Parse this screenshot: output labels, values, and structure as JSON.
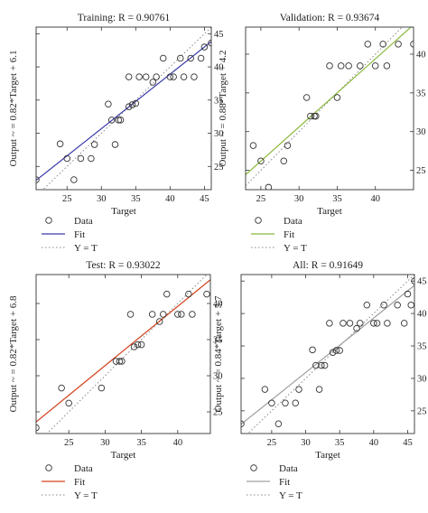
{
  "chart_data": [
    {
      "type": "scatter",
      "title": "Training: R = 0.90761",
      "xlabel": "Target",
      "ylabel": "Output ~ = 0.82*Target + 6.1",
      "xlim": [
        20.5,
        46
      ],
      "ylim": [
        21.5,
        46
      ],
      "xticks": [
        25,
        30,
        35,
        40,
        45
      ],
      "yticks": [
        25,
        30,
        35,
        40,
        45
      ],
      "fit_color": "#3a3aa8",
      "fit": {
        "slope": 0.82,
        "intercept": 6.1,
        "x_range": [
          20.5,
          46
        ]
      },
      "points": [
        [
          20.5,
          23.0
        ],
        [
          24.0,
          28.4
        ],
        [
          25.0,
          26.2
        ],
        [
          26.0,
          23.0
        ],
        [
          27.0,
          26.2
        ],
        [
          28.5,
          26.2
        ],
        [
          29.0,
          28.3
        ],
        [
          31.0,
          34.4
        ],
        [
          31.5,
          32.0
        ],
        [
          32.0,
          28.3
        ],
        [
          32.5,
          32.0
        ],
        [
          32.8,
          32.0
        ],
        [
          34.0,
          34.0
        ],
        [
          34.0,
          38.5
        ],
        [
          34.5,
          34.3
        ],
        [
          35.0,
          34.5
        ],
        [
          35.5,
          38.5
        ],
        [
          36.5,
          38.5
        ],
        [
          37.5,
          37.7
        ],
        [
          38.0,
          38.5
        ],
        [
          39.0,
          41.3
        ],
        [
          40.0,
          38.5
        ],
        [
          40.5,
          38.5
        ],
        [
          41.5,
          41.3
        ],
        [
          42.0,
          38.5
        ],
        [
          43.0,
          41.3
        ],
        [
          43.5,
          38.5
        ],
        [
          44.5,
          41.3
        ],
        [
          45.0,
          43.0
        ],
        [
          46.0,
          43.6
        ]
      ],
      "legend": [
        "Data",
        "Fit",
        "Y = T"
      ]
    },
    {
      "type": "scatter",
      "title": "Validation: R = 0.93674",
      "xlabel": "Target",
      "ylabel": "Output ~ = 0.88*Target + 4.2",
      "xlim": [
        23,
        45
      ],
      "ylim": [
        22.5,
        43.5
      ],
      "xticks": [
        25,
        30,
        35,
        40
      ],
      "yticks": [
        25,
        30,
        35,
        40
      ],
      "fit_color": "#8ab83a",
      "fit": {
        "slope": 0.88,
        "intercept": 4.2,
        "x_range": [
          23,
          45
        ]
      },
      "points": [
        [
          24.0,
          28.2
        ],
        [
          25.0,
          26.2
        ],
        [
          26.0,
          22.8
        ],
        [
          28.0,
          26.2
        ],
        [
          28.5,
          28.2
        ],
        [
          31.0,
          34.4
        ],
        [
          31.5,
          32.0
        ],
        [
          32.0,
          32.0
        ],
        [
          32.2,
          32.0
        ],
        [
          34.0,
          38.5
        ],
        [
          35.0,
          34.4
        ],
        [
          35.5,
          38.5
        ],
        [
          36.5,
          38.5
        ],
        [
          38.0,
          38.5
        ],
        [
          39.0,
          41.3
        ],
        [
          40.0,
          38.5
        ],
        [
          41.0,
          41.3
        ],
        [
          41.5,
          38.5
        ],
        [
          43.0,
          41.3
        ],
        [
          45.0,
          41.3
        ]
      ],
      "legend": [
        "Data",
        "Fit",
        "Y = T"
      ]
    },
    {
      "type": "scatter",
      "title": "Test: R = 0.93022",
      "xlabel": "Target",
      "ylabel": "Output ~ = 0.82*Target + 6.8",
      "xlim": [
        20.5,
        44.5
      ],
      "ylim": [
        22.0,
        44.0
      ],
      "xticks": [
        25,
        30,
        35,
        40
      ],
      "yticks": [
        25,
        30,
        35,
        40
      ],
      "fit_color": "#d2401a",
      "fit": {
        "slope": 0.82,
        "intercept": 6.8,
        "x_range": [
          20.5,
          44.5
        ]
      },
      "points": [
        [
          20.5,
          22.8
        ],
        [
          24.0,
          28.3
        ],
        [
          25.0,
          26.2
        ],
        [
          29.5,
          28.3
        ],
        [
          31.5,
          32.0
        ],
        [
          32.0,
          32.0
        ],
        [
          32.3,
          32.0
        ],
        [
          33.5,
          38.5
        ],
        [
          34.0,
          34.0
        ],
        [
          34.5,
          34.3
        ],
        [
          35.0,
          34.3
        ],
        [
          36.5,
          38.5
        ],
        [
          37.5,
          37.5
        ],
        [
          38.0,
          38.5
        ],
        [
          38.5,
          41.3
        ],
        [
          40.0,
          38.5
        ],
        [
          40.5,
          38.5
        ],
        [
          41.5,
          41.3
        ],
        [
          42.0,
          38.5
        ],
        [
          44.0,
          41.3
        ]
      ],
      "legend": [
        "Data",
        "Fit",
        "Y = T"
      ]
    },
    {
      "type": "scatter",
      "title": "All: R = 0.91649",
      "xlabel": "Target",
      "ylabel": "Output ~ = 0.84*Target + 5.7",
      "xlim": [
        20.5,
        46
      ],
      "ylim": [
        21.5,
        46
      ],
      "xticks": [
        25,
        30,
        35,
        40,
        45
      ],
      "yticks": [
        25,
        30,
        35,
        40,
        45
      ],
      "fit_color": "#a0a0a0",
      "fit": {
        "slope": 0.84,
        "intercept": 5.7,
        "x_range": [
          20.5,
          46
        ]
      },
      "points": [
        [
          20.5,
          23.0
        ],
        [
          24.0,
          28.3
        ],
        [
          25.0,
          26.2
        ],
        [
          26.0,
          23.0
        ],
        [
          27.0,
          26.2
        ],
        [
          28.5,
          26.2
        ],
        [
          29.0,
          28.3
        ],
        [
          31.0,
          34.4
        ],
        [
          31.5,
          32.0
        ],
        [
          32.0,
          28.3
        ],
        [
          32.3,
          32.0
        ],
        [
          32.8,
          32.0
        ],
        [
          33.5,
          38.5
        ],
        [
          34.0,
          34.0
        ],
        [
          34.5,
          34.3
        ],
        [
          35.0,
          34.3
        ],
        [
          35.5,
          38.5
        ],
        [
          36.5,
          38.5
        ],
        [
          37.5,
          37.7
        ],
        [
          38.0,
          38.5
        ],
        [
          39.0,
          41.3
        ],
        [
          40.0,
          38.5
        ],
        [
          40.5,
          38.5
        ],
        [
          41.5,
          41.3
        ],
        [
          42.0,
          38.5
        ],
        [
          43.5,
          41.3
        ],
        [
          44.5,
          38.5
        ],
        [
          45.5,
          41.3
        ],
        [
          46.0,
          45.0
        ],
        [
          45.0,
          43.0
        ]
      ],
      "legend": [
        "Data",
        "Fit",
        "Y = T"
      ]
    }
  ]
}
